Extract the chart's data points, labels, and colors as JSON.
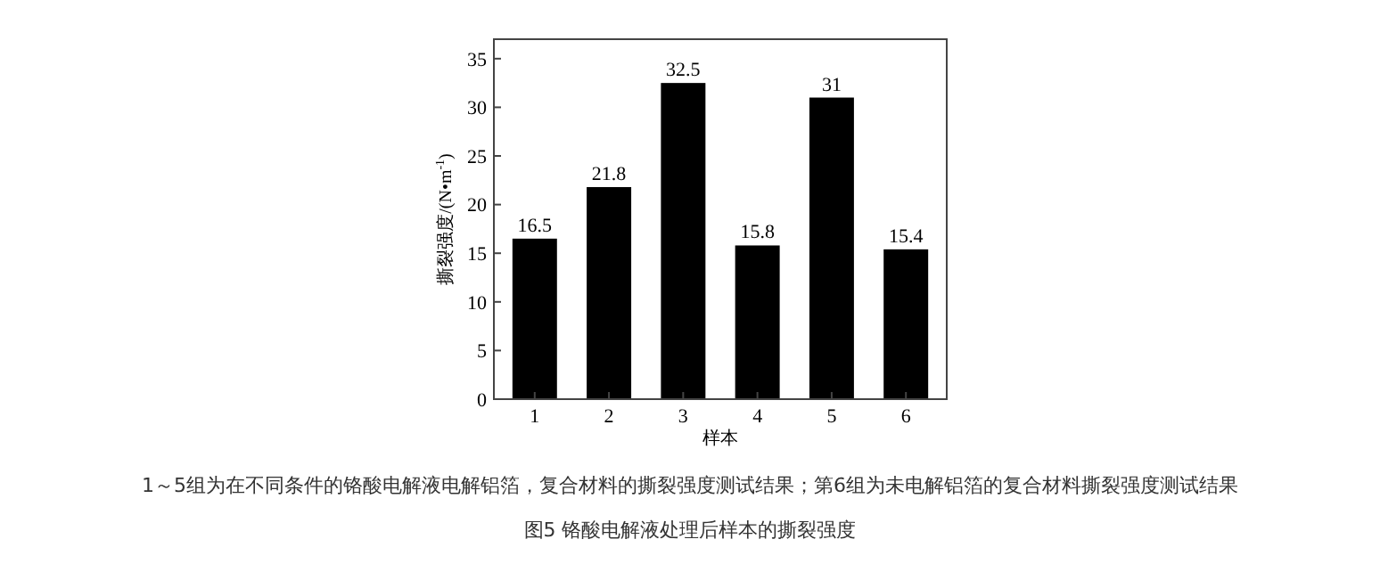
{
  "chart_data": {
    "type": "bar",
    "title": "图5 铬酸电解液处理后样本的撕裂强度",
    "annotations": [
      "1～5组为在不同条件的铬酸电解液电解铝箔，复合材料的撕裂强度测试结果；第6组为未电解铝箔的复合材料撕裂强度测试结果"
    ],
    "xlabel": "样本",
    "ylabel": "撕裂强度/(N•m$^{-1}$)",
    "categories": [
      "1",
      "2",
      "3",
      "4",
      "5",
      "6"
    ],
    "values": [
      16.5,
      21.8,
      32.5,
      15.8,
      31,
      15.4
    ],
    "color": "#000000",
    "ylim": [
      0,
      37
    ],
    "yticks": [
      0,
      5,
      10,
      15,
      20,
      25,
      30,
      35
    ],
    "data_labels": true,
    "grid": false
  }
}
